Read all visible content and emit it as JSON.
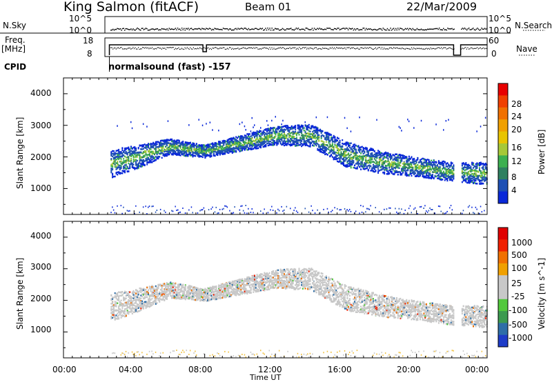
{
  "header": {
    "station": "King Salmon (fitACF)",
    "beam": "Beam 01",
    "date": "22/Mar/2009"
  },
  "status_panel": {
    "nsky_label": "N.Sky",
    "nsky_ticks": [
      "10^5",
      "10^0"
    ],
    "nsearch_label": "N.Search",
    "nsearch_ticks": [
      "10^5",
      "10^0"
    ],
    "freq_label": "Freq.",
    "freq_unit": "[MHz]",
    "freq_ticks": [
      "18",
      "8"
    ],
    "nave_label": "Nave",
    "nave_ticks": [
      "60",
      "0"
    ],
    "cpid_label": "CPID",
    "cpid_text": "normalsound (fast) -157"
  },
  "chart_data": [
    {
      "type": "heatmap",
      "name": "power",
      "ylabel": "Slant Range [km]",
      "ylim": [
        180,
        4500
      ],
      "yticks": [
        "1000",
        "2000",
        "3000",
        "4000"
      ],
      "xlim_hours": [
        0,
        24
      ],
      "xticks": [
        "00:00",
        "04:00",
        "08:00",
        "12:00",
        "16:00",
        "20:00",
        "00:00"
      ],
      "colorbar": {
        "label": "Power [dB]",
        "ticks": [
          "4",
          "8",
          "12",
          "16",
          "20",
          "24",
          "28"
        ],
        "colors": [
          "#0a28d8",
          "#1e50b4",
          "#2e8060",
          "#3cb050",
          "#a6c838",
          "#e8c400",
          "#f0a000",
          "#f07000",
          "#f04000",
          "#e80000"
        ]
      },
      "echo_band_km": [
        {
          "hour": 2.6,
          "center": 1800,
          "width": 450
        },
        {
          "hour": 4.0,
          "center": 2000,
          "width": 380
        },
        {
          "hour": 6.0,
          "center": 2350,
          "width": 250
        },
        {
          "hour": 8.0,
          "center": 2200,
          "width": 200
        },
        {
          "hour": 10.0,
          "center": 2450,
          "width": 250
        },
        {
          "hour": 12.0,
          "center": 2700,
          "width": 300
        },
        {
          "hour": 14.0,
          "center": 2700,
          "width": 350
        },
        {
          "hour": 16.0,
          "center": 2100,
          "width": 400
        },
        {
          "hour": 18.0,
          "center": 1850,
          "width": 350
        },
        {
          "hour": 20.0,
          "center": 1700,
          "width": 300
        },
        {
          "hour": 22.0,
          "center": 1550,
          "width": 300
        },
        {
          "hour": 24.0,
          "center": 1500,
          "width": 350
        }
      ],
      "data_gaps_hours": [
        [
          0,
          2.6
        ],
        [
          22.1,
          22.5
        ]
      ]
    },
    {
      "type": "heatmap",
      "name": "velocity",
      "ylabel": "Slant Range [km]",
      "ylim": [
        180,
        4500
      ],
      "yticks": [
        "1000",
        "2000",
        "3000",
        "4000"
      ],
      "xlim_hours": [
        0,
        24
      ],
      "xticks": [
        "00:00",
        "04:00",
        "08:00",
        "12:00",
        "16:00",
        "20:00",
        "00:00"
      ],
      "xlabel": "Time UT",
      "colorbar": {
        "label": "Velocity [m s^-1]",
        "ticks": [
          "1000",
          "500",
          "100",
          "25",
          "-25",
          "-100",
          "-500",
          "-1000"
        ],
        "colors": [
          "#1e3cc8",
          "#2e6ea8",
          "#3c9a50",
          "#52c83c",
          "#c8c8c8",
          "#c8c8c8",
          "#f0a000",
          "#f07000",
          "#f02000",
          "#e00000"
        ]
      }
    }
  ]
}
